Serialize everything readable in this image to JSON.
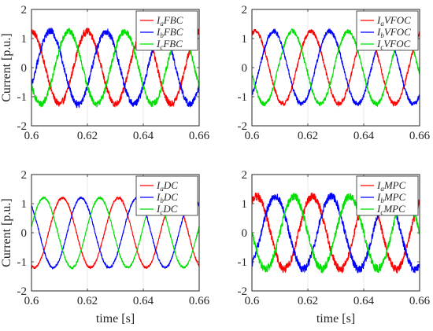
{
  "chart_data": [
    {
      "type": "line",
      "panel": "top-left",
      "xlabel": "",
      "ylabel": "Current [p.u.]",
      "xlim": [
        0.6,
        0.66
      ],
      "ylim": [
        -2,
        2
      ],
      "xticks": [
        "0.6",
        "0.62",
        "0.64",
        "0.66"
      ],
      "yticks": [
        "2",
        "1",
        "0",
        "-1",
        "-2"
      ],
      "grid": true,
      "legend_position": "top-right",
      "series": [
        {
          "name": "IaFBC",
          "sub": "a",
          "suffix": "FBC",
          "color": "#ff0000",
          "amplitude": 1.25,
          "phase_deg": 90,
          "noise": 0.12
        },
        {
          "name": "IbFBC",
          "sub": "b",
          "suffix": "FBC",
          "color": "#0000ff",
          "amplitude": 1.25,
          "phase_deg": -30,
          "noise": 0.12
        },
        {
          "name": "IcFBC",
          "sub": "c",
          "suffix": "FBC",
          "color": "#00e000",
          "amplitude": 1.25,
          "phase_deg": 210,
          "noise": 0.12
        }
      ],
      "frequency_hz": 50
    },
    {
      "type": "line",
      "panel": "top-right",
      "xlabel": "",
      "ylabel": "",
      "xlim": [
        0.6,
        0.66
      ],
      "ylim": [
        -2,
        2
      ],
      "xticks": [
        "0.6",
        "0.62",
        "0.64",
        "0.66"
      ],
      "yticks": [
        "2",
        "1",
        "0",
        "-1",
        "-2"
      ],
      "grid": true,
      "legend_position": "top-right",
      "series": [
        {
          "name": "IaVFOC",
          "sub": "a",
          "suffix": "VFOC",
          "color": "#ff0000",
          "amplitude": 1.25,
          "phase_deg": 70,
          "noise": 0.08
        },
        {
          "name": "IbVFOC",
          "sub": "b",
          "suffix": "VFOC",
          "color": "#0000ff",
          "amplitude": 1.25,
          "phase_deg": -50,
          "noise": 0.08
        },
        {
          "name": "IcVFOC",
          "sub": "c",
          "suffix": "VFOC",
          "color": "#00e000",
          "amplitude": 1.25,
          "phase_deg": 190,
          "noise": 0.08
        }
      ],
      "frequency_hz": 50
    },
    {
      "type": "line",
      "panel": "bottom-left",
      "xlabel": "time [s]",
      "ylabel": "Current [p.u.]",
      "xlim": [
        0.6,
        0.66
      ],
      "ylim": [
        -2,
        2
      ],
      "xticks": [
        "0.6",
        "0.62",
        "0.64",
        "0.66"
      ],
      "yticks": [
        "2",
        "1",
        "0",
        "-1",
        "-2"
      ],
      "grid": true,
      "legend_position": "top-right",
      "series": [
        {
          "name": "IaDC",
          "sub": "a",
          "suffix": "DC",
          "color": "#ff0000",
          "amplitude": 1.2,
          "phase_deg": -110,
          "noise": 0.04
        },
        {
          "name": "IbDC",
          "sub": "b",
          "suffix": "DC",
          "color": "#0000ff",
          "amplitude": 1.2,
          "phase_deg": 130,
          "noise": 0.04
        },
        {
          "name": "IcDC",
          "sub": "c",
          "suffix": "DC",
          "color": "#00e000",
          "amplitude": 1.2,
          "phase_deg": 10,
          "noise": 0.04
        }
      ],
      "frequency_hz": 50
    },
    {
      "type": "line",
      "panel": "bottom-right",
      "xlabel": "time [s]",
      "ylabel": "",
      "xlim": [
        0.6,
        0.66
      ],
      "ylim": [
        -2,
        2
      ],
      "xticks": [
        "0.6",
        "0.62",
        "0.64",
        "0.66"
      ],
      "yticks": [
        "2",
        "1",
        "0",
        "-1",
        "-2"
      ],
      "grid": true,
      "legend_position": "top-right",
      "series": [
        {
          "name": "IaMPC",
          "sub": "a",
          "suffix": "MPC",
          "color": "#ff0000",
          "amplitude": 1.25,
          "phase_deg": 60,
          "noise": 0.14
        },
        {
          "name": "IbMPC",
          "sub": "b",
          "suffix": "MPC",
          "color": "#0000ff",
          "amplitude": 1.25,
          "phase_deg": -60,
          "noise": 0.14
        },
        {
          "name": "IcMPC",
          "sub": "c",
          "suffix": "MPC",
          "color": "#00e000",
          "amplitude": 1.25,
          "phase_deg": 180,
          "noise": 0.14
        }
      ],
      "frequency_hz": 50
    }
  ]
}
